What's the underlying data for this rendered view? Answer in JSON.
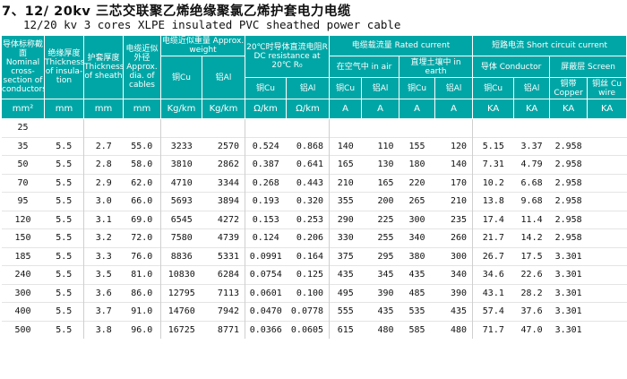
{
  "title": {
    "zh": "7、12/ 20kv  三芯交联聚乙烯绝缘聚氯乙烯护套电力电缆",
    "en": "12/20 kv 3 cores XLPE insulated PVC sheathed power cable"
  },
  "header": {
    "section": "导体标称截面 Nominal cross-section of conductors",
    "insulation": "绝缘厚度 Thickness of insula-tion",
    "sheath": "护套厚度 Thickness of sheath",
    "diameter": "电缆近似外径 Approx. dia. of cables",
    "weight": "电缆近似重量 Approx. weight",
    "weight_cu": "铜Cu",
    "weight_al": "铝Al",
    "resistance": "20℃时导体直流电阻R DC resistance at 20℃ R₀",
    "res_cu": "铜Cu",
    "res_al": "铝Al",
    "rated": "电缆载流量 Rated current",
    "in_air": "在空气中 in air",
    "in_earth": "直埋土壤中 in earth",
    "air_cu": "铜Cu",
    "air_al": "铝Al",
    "earth_cu": "铜Cu",
    "earth_al": "铝Al",
    "short": "短路电流 Short circuit current",
    "sc_conductor": "导体 Conductor",
    "sc_screen": "屏蔽层 Screen",
    "sc_cu": "铜Cu",
    "sc_al": "铝Al",
    "sc_copper": "铜带 Copper",
    "sc_wire": "铜丝 Cu wire"
  },
  "units": [
    "mm²",
    "mm",
    "mm",
    "mm",
    "Kg/km",
    "Kg/km",
    "Ω/km",
    "Ω/km",
    "A",
    "A",
    "A",
    "A",
    "KA",
    "KA",
    "KA",
    "KA"
  ],
  "rows": [
    [
      "25",
      "",
      "",
      "",
      "",
      "",
      "",
      "",
      "",
      "",
      "",
      "",
      "",
      "",
      "",
      ""
    ],
    [
      "35",
      "5.5",
      "2.7",
      "55.0",
      "3233",
      "2570",
      "0.524",
      "0.868",
      "140",
      "110",
      "155",
      "120",
      "5.15",
      "3.37",
      "2.958",
      ""
    ],
    [
      "50",
      "5.5",
      "2.8",
      "58.0",
      "3810",
      "2862",
      "0.387",
      "0.641",
      "165",
      "130",
      "180",
      "140",
      "7.31",
      "4.79",
      "2.958",
      ""
    ],
    [
      "70",
      "5.5",
      "2.9",
      "62.0",
      "4710",
      "3344",
      "0.268",
      "0.443",
      "210",
      "165",
      "220",
      "170",
      "10.2",
      "6.68",
      "2.958",
      ""
    ],
    [
      "95",
      "5.5",
      "3.0",
      "66.0",
      "5693",
      "3894",
      "0.193",
      "0.320",
      "355",
      "200",
      "265",
      "210",
      "13.8",
      "9.68",
      "2.958",
      ""
    ],
    [
      "120",
      "5.5",
      "3.1",
      "69.0",
      "6545",
      "4272",
      "0.153",
      "0.253",
      "290",
      "225",
      "300",
      "235",
      "17.4",
      "11.4",
      "2.958",
      ""
    ],
    [
      "150",
      "5.5",
      "3.2",
      "72.0",
      "7580",
      "4739",
      "0.124",
      "0.206",
      "330",
      "255",
      "340",
      "260",
      "21.7",
      "14.2",
      "2.958",
      ""
    ],
    [
      "185",
      "5.5",
      "3.3",
      "76.0",
      "8836",
      "5331",
      "0.0991",
      "0.164",
      "375",
      "295",
      "380",
      "300",
      "26.7",
      "17.5",
      "3.301",
      ""
    ],
    [
      "240",
      "5.5",
      "3.5",
      "81.0",
      "10830",
      "6284",
      "0.0754",
      "0.125",
      "435",
      "345",
      "435",
      "340",
      "34.6",
      "22.6",
      "3.301",
      ""
    ],
    [
      "300",
      "5.5",
      "3.6",
      "86.0",
      "12795",
      "7113",
      "0.0601",
      "0.100",
      "495",
      "390",
      "485",
      "390",
      "43.1",
      "28.2",
      "3.301",
      ""
    ],
    [
      "400",
      "5.5",
      "3.7",
      "91.0",
      "14760",
      "7942",
      "0.0470",
      "0.0778",
      "555",
      "435",
      "535",
      "435",
      "57.4",
      "37.6",
      "3.301",
      ""
    ],
    [
      "500",
      "5.5",
      "3.8",
      "96.0",
      "16725",
      "8771",
      "0.0366",
      "0.0605",
      "615",
      "480",
      "585",
      "480",
      "71.7",
      "47.0",
      "3.301",
      ""
    ]
  ]
}
